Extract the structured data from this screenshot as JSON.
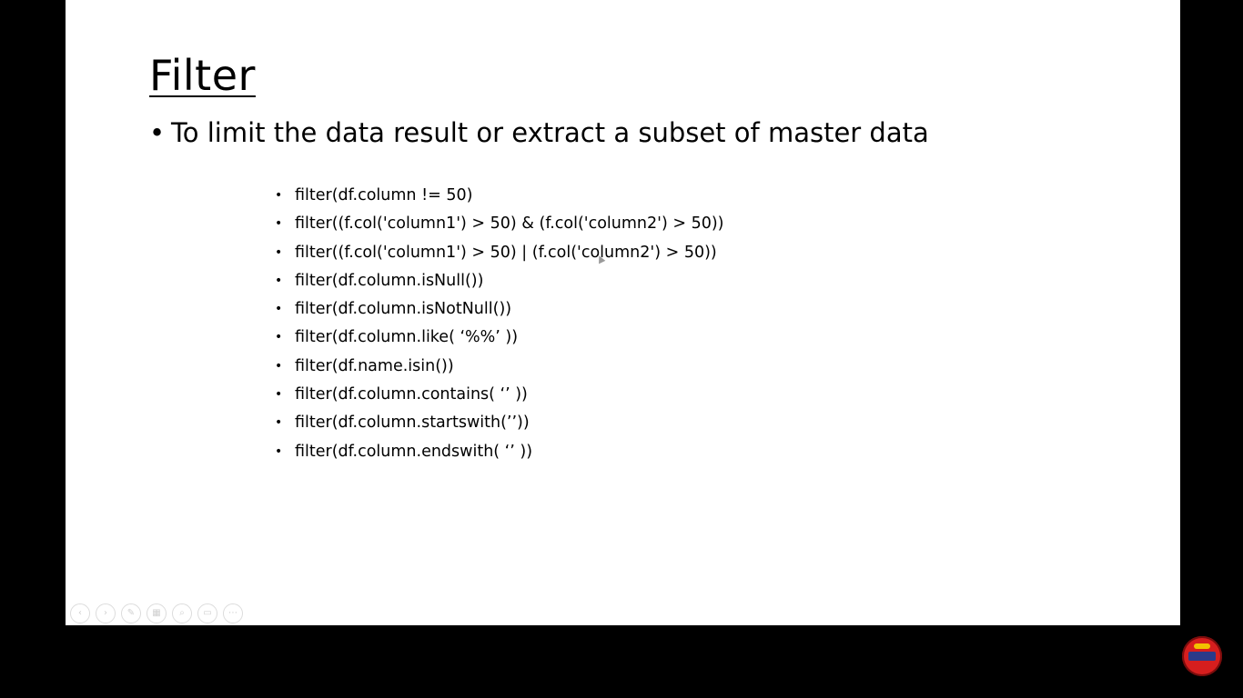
{
  "slide": {
    "title": "Filter",
    "main_bullet": {
      "marker": "•",
      "text": "To limit the data result or extract a subset of master data"
    },
    "sub_bullets": [
      "filter(df.column != 50)",
      "filter((f.col('column1') > 50) & (f.col('column2') > 50))",
      "filter((f.col('column1') > 50) | (f.col('column2') > 50))",
      "filter(df.column.isNull())",
      "filter(df.column.isNotNull())",
      "filter(df.column.like( ‘%%’ ))",
      "filter(df.name.isin())",
      "filter(df.column.contains( ‘’ ))",
      "filter(df.column.startswith(’’))",
      "filter(df.column.endswith( ‘’ ))"
    ],
    "sub_bullet_marker": "•"
  },
  "controls": [
    {
      "name": "previous-slide-icon",
      "glyph": "‹"
    },
    {
      "name": "next-slide-icon",
      "glyph": "›"
    },
    {
      "name": "pen-icon",
      "glyph": "✎"
    },
    {
      "name": "slides-grid-icon",
      "glyph": "▦"
    },
    {
      "name": "zoom-icon",
      "glyph": "⌕"
    },
    {
      "name": "subtitles-icon",
      "glyph": "▭"
    },
    {
      "name": "more-options-icon",
      "glyph": "⋯"
    }
  ],
  "colors": {
    "background": "#000000",
    "slide": "#ffffff",
    "text": "#000000",
    "logo": "#d61e1e"
  }
}
